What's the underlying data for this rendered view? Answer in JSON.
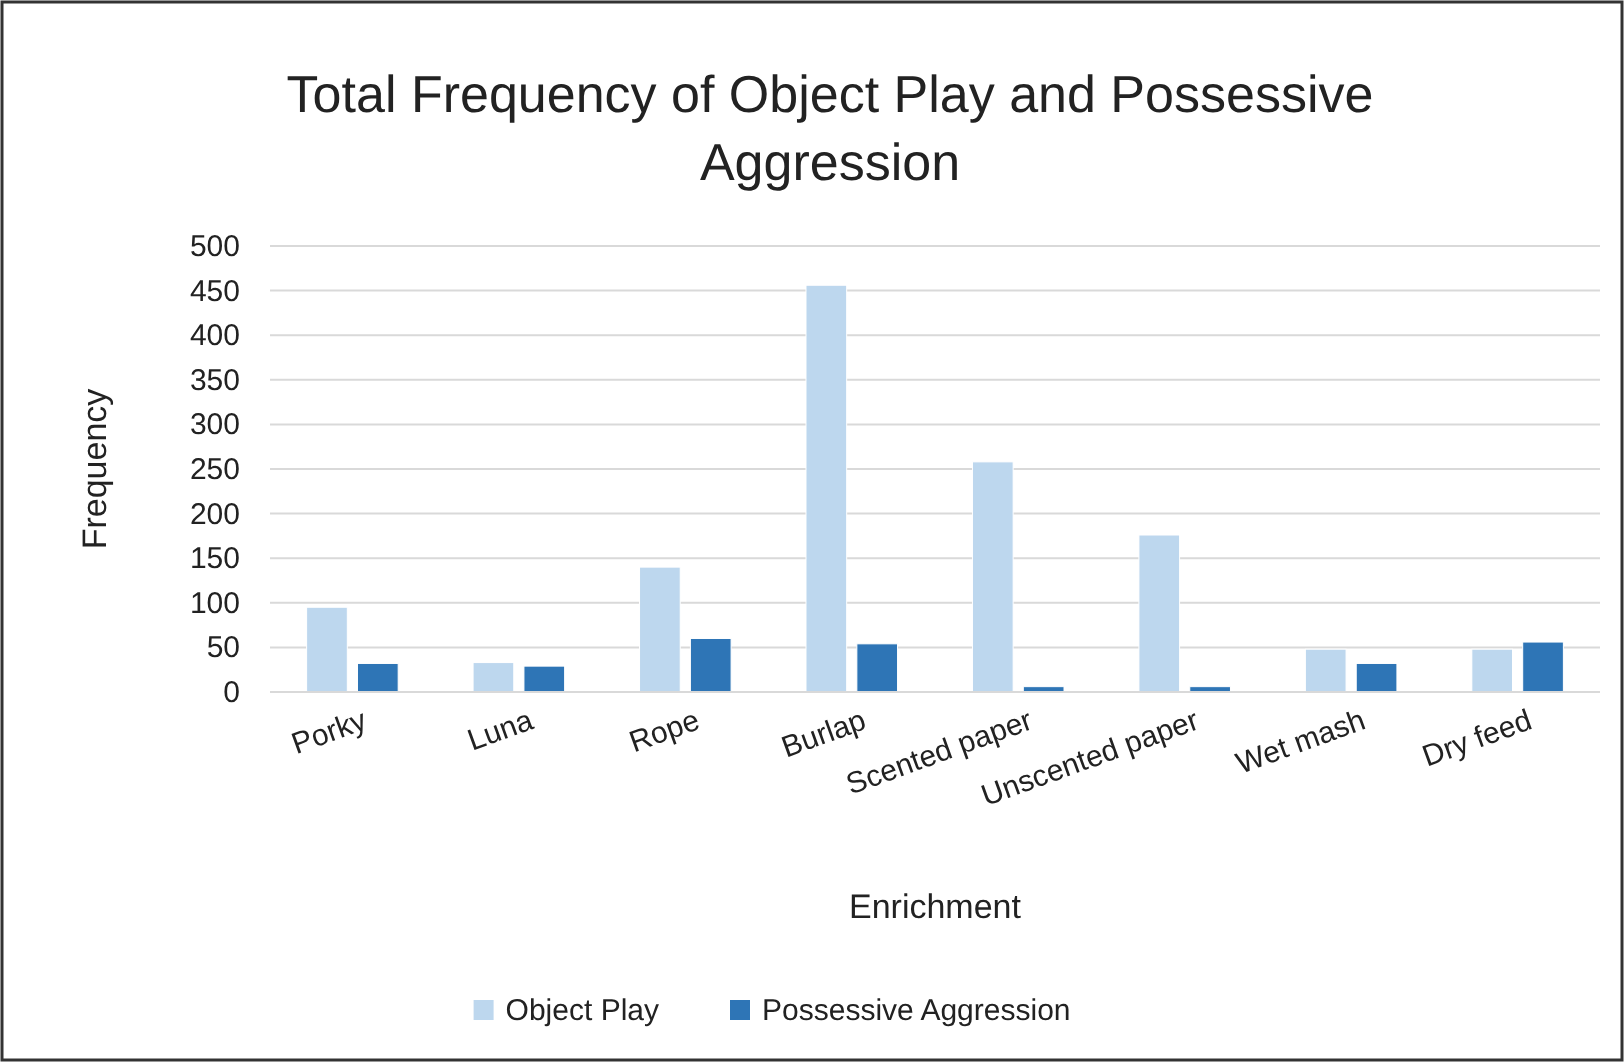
{
  "chart_data": {
    "type": "bar",
    "title": "Total Frequency of Object Play and Possessive Aggression",
    "xlabel": "Enrichment",
    "ylabel": "Frequency",
    "categories": [
      "Porky",
      "Luna",
      "Rope",
      "Burlap",
      "Scented paper",
      "Unscented paper",
      "Wet mash",
      "Dry feed"
    ],
    "series": [
      {
        "name": "Object Play",
        "color": "#bdd7ee",
        "values": [
          95,
          33,
          140,
          456,
          258,
          176,
          48,
          48
        ]
      },
      {
        "name": "Possessive Aggression",
        "color": "#2e75b6",
        "values": [
          32,
          29,
          60,
          54,
          6,
          6,
          32,
          56
        ]
      }
    ],
    "ylim": [
      0,
      500
    ],
    "yticks": [
      0,
      50,
      100,
      150,
      200,
      250,
      300,
      350,
      400,
      450,
      500
    ],
    "grid": "y",
    "legend": "bottom"
  }
}
